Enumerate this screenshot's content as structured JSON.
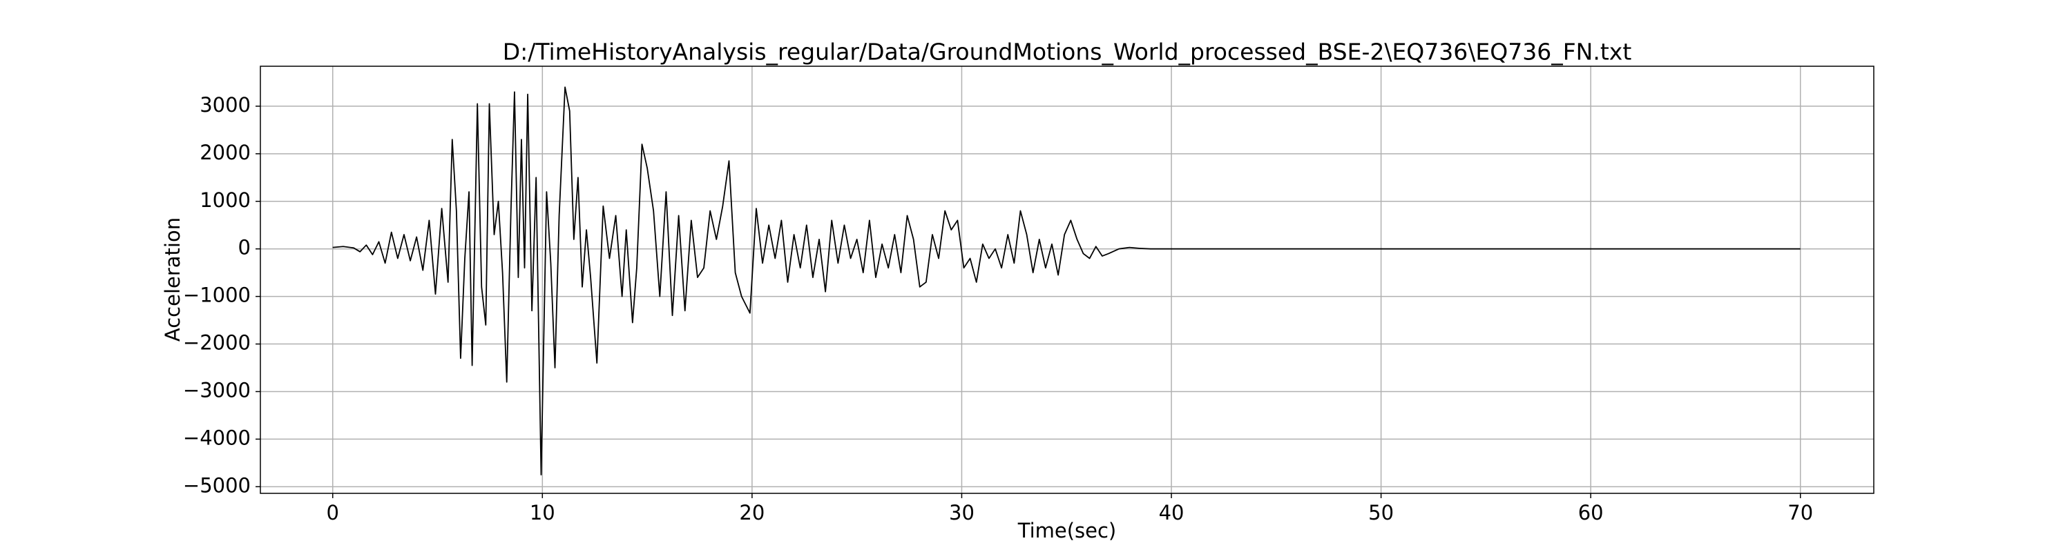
{
  "chart_data": {
    "type": "line",
    "title": "D:/TimeHistoryAnalysis_regular/Data/GroundMotions_World_processed_BSE-2\\EQ736\\EQ736_FN.txt",
    "xlabel": "Time(sec)",
    "ylabel": "Acceleration",
    "color": "#000000",
    "grid": true,
    "xlim": [
      -3.45,
      73.5
    ],
    "ylim": [
      -5140,
      3840
    ],
    "xticks": [
      0,
      10,
      20,
      30,
      40,
      50,
      60,
      70
    ],
    "yticks": [
      {
        "value": -5000,
        "label": "−5000"
      },
      {
        "value": -4000,
        "label": "−4000"
      },
      {
        "value": -3000,
        "label": "−3000"
      },
      {
        "value": -2000,
        "label": "−2000"
      },
      {
        "value": -1000,
        "label": "−1000"
      },
      0,
      1000,
      2000,
      3000
    ],
    "x": [
      0,
      0.5,
      1,
      1.3,
      1.6,
      1.9,
      2.2,
      2.5,
      2.8,
      3.1,
      3.4,
      3.7,
      4,
      4.3,
      4.6,
      4.9,
      5.2,
      5.5,
      5.7,
      5.9,
      6.1,
      6.3,
      6.5,
      6.65,
      6.9,
      7.1,
      7.3,
      7.47,
      7.7,
      7.9,
      8.1,
      8.3,
      8.5,
      8.67,
      8.85,
      9,
      9.15,
      9.3,
      9.5,
      9.7,
      9.94,
      10.2,
      10.4,
      10.6,
      10.8,
      11.08,
      11.3,
      11.5,
      11.7,
      11.9,
      12.1,
      12.3,
      12.6,
      12.9,
      13.2,
      13.5,
      13.8,
      14.0,
      14.3,
      14.5,
      14.75,
      15,
      15.3,
      15.6,
      15.9,
      16.2,
      16.5,
      16.8,
      17.1,
      17.4,
      17.7,
      18.0,
      18.3,
      18.6,
      18.9,
      19.2,
      19.5,
      19.9,
      20.2,
      20.5,
      20.8,
      21.1,
      21.4,
      21.7,
      22,
      22.3,
      22.6,
      22.9,
      23.2,
      23.5,
      23.8,
      24.1,
      24.4,
      24.7,
      25,
      25.3,
      25.6,
      25.9,
      26.2,
      26.5,
      26.8,
      27.1,
      27.4,
      27.7,
      28,
      28.3,
      28.6,
      28.9,
      29.2,
      29.5,
      29.8,
      30.1,
      30.4,
      30.7,
      31,
      31.3,
      31.6,
      31.9,
      32.2,
      32.5,
      32.8,
      33.1,
      33.4,
      33.7,
      34,
      34.3,
      34.6,
      34.9,
      35.2,
      35.5,
      35.8,
      36.1,
      36.4,
      36.7,
      37,
      37.5,
      38,
      38.5,
      39,
      40,
      50,
      60,
      70
    ],
    "values": [
      30,
      50,
      20,
      -60,
      80,
      -120,
      150,
      -300,
      350,
      -200,
      300,
      -250,
      250,
      -450,
      600,
      -950,
      850,
      -700,
      2300,
      800,
      -2300,
      -200,
      1200,
      -2450,
      3050,
      -800,
      -1600,
      3050,
      300,
      1000,
      -500,
      -2800,
      800,
      3300,
      -600,
      2300,
      -400,
      3250,
      -1300,
      1500,
      -4750,
      1200,
      -300,
      -2500,
      700,
      3400,
      2900,
      200,
      1500,
      -800,
      400,
      -600,
      -2400,
      900,
      -200,
      700,
      -1000,
      400,
      -1550,
      -400,
      2200,
      1700,
      800,
      -1000,
      1200,
      -1400,
      700,
      -1300,
      600,
      -600,
      -400,
      800,
      200,
      900,
      1850,
      -500,
      -1000,
      -1350,
      850,
      -300,
      500,
      -200,
      600,
      -700,
      300,
      -400,
      500,
      -600,
      200,
      -900,
      600,
      -300,
      500,
      -200,
      200,
      -500,
      600,
      -600,
      100,
      -400,
      300,
      -500,
      700,
      200,
      -800,
      -700,
      300,
      -200,
      800,
      400,
      600,
      -400,
      -200,
      -700,
      100,
      -200,
      0,
      -400,
      300,
      -300,
      800,
      300,
      -500,
      200,
      -400,
      100,
      -550,
      300,
      600,
      200,
      -100,
      -200,
      50,
      -150,
      -100,
      0,
      30,
      10,
      0,
      0,
      0,
      0,
      0
    ]
  }
}
